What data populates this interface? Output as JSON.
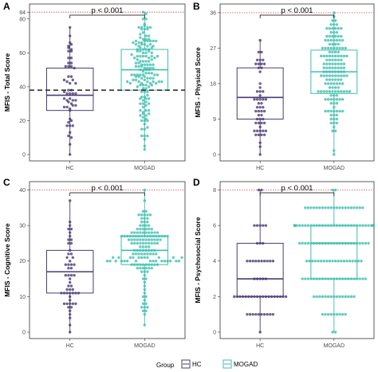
{
  "colors": {
    "HC": "#4a3b73",
    "MOGAD": "#3dbfae",
    "reference": "#e05a6a",
    "dashed": "#333333"
  },
  "legend": {
    "title": "Group",
    "items": [
      "HC",
      "MOGAD"
    ]
  },
  "chart_data": [
    {
      "type": "box",
      "panel": "A",
      "ylabel": "MFIS - Total Score",
      "ylim": [
        0,
        86
      ],
      "yticks": [
        0,
        20,
        40,
        60,
        80,
        84
      ],
      "ytick_labels": [
        "0",
        "20",
        "40",
        "60",
        "80",
        "84"
      ],
      "categories": [
        "HC",
        "MOGAD"
      ],
      "reference_line": 84,
      "dashed_line": 38,
      "annotation": "p < 0.001",
      "boxes": [
        {
          "group": "HC",
          "min": 0,
          "q1": 26,
          "median": 35,
          "q3": 51,
          "max": 75,
          "n": 55
        },
        {
          "group": "MOGAD",
          "min": 3,
          "q1": 38,
          "median": 50,
          "q3": 62,
          "max": 84,
          "n": 160
        }
      ]
    },
    {
      "type": "box",
      "panel": "B",
      "ylabel": "MFIS - Physical Score",
      "ylim": [
        0,
        37
      ],
      "yticks": [
        0,
        9,
        18,
        27,
        36
      ],
      "ytick_labels": [
        "0",
        "9",
        "18",
        "27",
        "36"
      ],
      "categories": [
        "HC",
        "MOGAD"
      ],
      "reference_line": 36,
      "annotation": "p < 0.001",
      "boxes": [
        {
          "group": "HC",
          "min": 0,
          "q1": 9,
          "median": 14.5,
          "q3": 22,
          "max": 29,
          "n": 55
        },
        {
          "group": "MOGAD",
          "min": 0,
          "q1": 15.5,
          "median": 21,
          "q3": 26.5,
          "max": 36,
          "n": 160
        }
      ]
    },
    {
      "type": "box",
      "panel": "C",
      "ylabel": "MFIS - Cognitive Score",
      "ylim": [
        0,
        41
      ],
      "yticks": [
        0,
        10,
        20,
        30,
        40
      ],
      "ytick_labels": [
        "0",
        "10",
        "20",
        "30",
        "40"
      ],
      "categories": [
        "HC",
        "MOGAD"
      ],
      "reference_line": 40,
      "annotation": "p < 0.001",
      "boxes": [
        {
          "group": "HC",
          "min": 0,
          "q1": 11,
          "median": 17,
          "q3": 23,
          "max": 37,
          "n": 55
        },
        {
          "group": "MOGAD",
          "min": 2,
          "q1": 19,
          "median": 23,
          "q3": 27,
          "max": 40,
          "n": 160
        }
      ]
    },
    {
      "type": "box",
      "panel": "D",
      "ylabel": "MFIS - Psychosocial Score",
      "ylim": [
        0,
        8.2
      ],
      "yticks": [
        0,
        2,
        4,
        6,
        8
      ],
      "ytick_labels": [
        "0",
        "2",
        "4",
        "6",
        "8"
      ],
      "categories": [
        "HC",
        "MOGAD"
      ],
      "reference_line": 8,
      "annotation": "p < 0.001",
      "boxes": [
        {
          "group": "HC",
          "min": 0,
          "q1": 2,
          "median": 3,
          "q3": 5,
          "max": 8,
          "n": 55
        },
        {
          "group": "MOGAD",
          "min": 0,
          "q1": 3,
          "median": 5,
          "q3": 6,
          "max": 8,
          "n": 160
        }
      ]
    }
  ]
}
